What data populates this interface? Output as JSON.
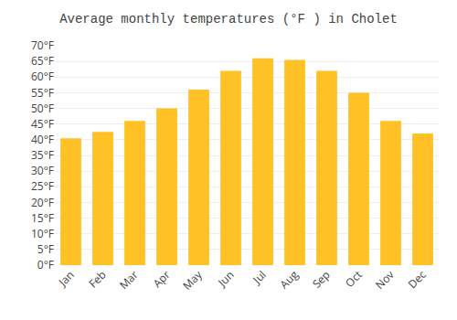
{
  "chart_data": {
    "type": "bar",
    "title": "Average monthly temperatures (°F ) in Cholet",
    "categories": [
      "Jan",
      "Feb",
      "Mar",
      "Apr",
      "May",
      "Jun",
      "Jul",
      "Aug",
      "Sep",
      "Oct",
      "Nov",
      "Dec"
    ],
    "values": [
      40.5,
      42.5,
      46.0,
      50.0,
      56.0,
      62.0,
      66.0,
      65.5,
      62.0,
      55.0,
      46.0,
      42.0
    ],
    "color": "#FFC125",
    "ylim": [
      0,
      70
    ],
    "yticks": [
      {
        "value": 0,
        "label": "0°F"
      },
      {
        "value": 5,
        "label": "5°F"
      },
      {
        "value": 10,
        "label": "10°F"
      },
      {
        "value": 15,
        "label": "15°F"
      },
      {
        "value": 20,
        "label": "20°F"
      },
      {
        "value": 25,
        "label": "25°F"
      },
      {
        "value": 30,
        "label": "30°F"
      },
      {
        "value": 35,
        "label": "35°F"
      },
      {
        "value": 40,
        "label": "40°F"
      },
      {
        "value": 45,
        "label": "45°F"
      },
      {
        "value": 50,
        "label": "50°F"
      },
      {
        "value": 55,
        "label": "55°F"
      },
      {
        "value": 60,
        "label": "60°F"
      },
      {
        "value": 65,
        "label": "65°F"
      },
      {
        "value": 70,
        "label": "70°F"
      }
    ],
    "grid": true
  }
}
